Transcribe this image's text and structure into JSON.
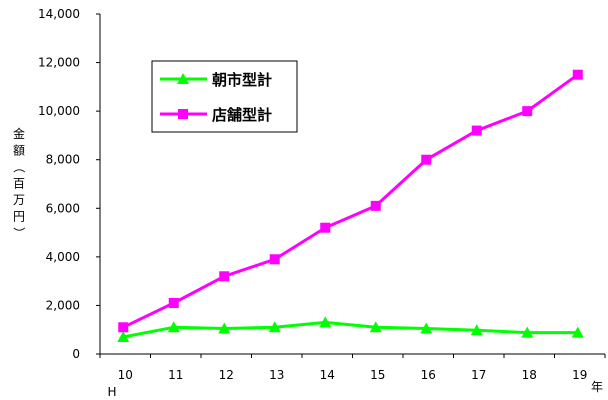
{
  "chart_data": {
    "type": "line",
    "x": [
      "10",
      "11",
      "12",
      "13",
      "14",
      "15",
      "16",
      "17",
      "18",
      "19"
    ],
    "x_sublabel": "H",
    "x_unit": "年",
    "ylabel": "金額（百万円）",
    "ylim": [
      0,
      14000
    ],
    "yticks": [
      "0",
      "2,000",
      "4,000",
      "6,000",
      "8,000",
      "10,000",
      "12,000",
      "14,000"
    ],
    "legend": "top-left",
    "series": [
      {
        "name": "朝市型計",
        "color": "#00ff00",
        "marker": "triangle",
        "values": [
          700,
          1100,
          1050,
          1100,
          1300,
          1100,
          1050,
          980,
          880,
          880
        ]
      },
      {
        "name": "店舗型計",
        "color": "#ff00ff",
        "marker": "square",
        "values": [
          1100,
          2100,
          3200,
          3900,
          5200,
          6100,
          8000,
          9200,
          10000,
          11500
        ]
      }
    ]
  }
}
